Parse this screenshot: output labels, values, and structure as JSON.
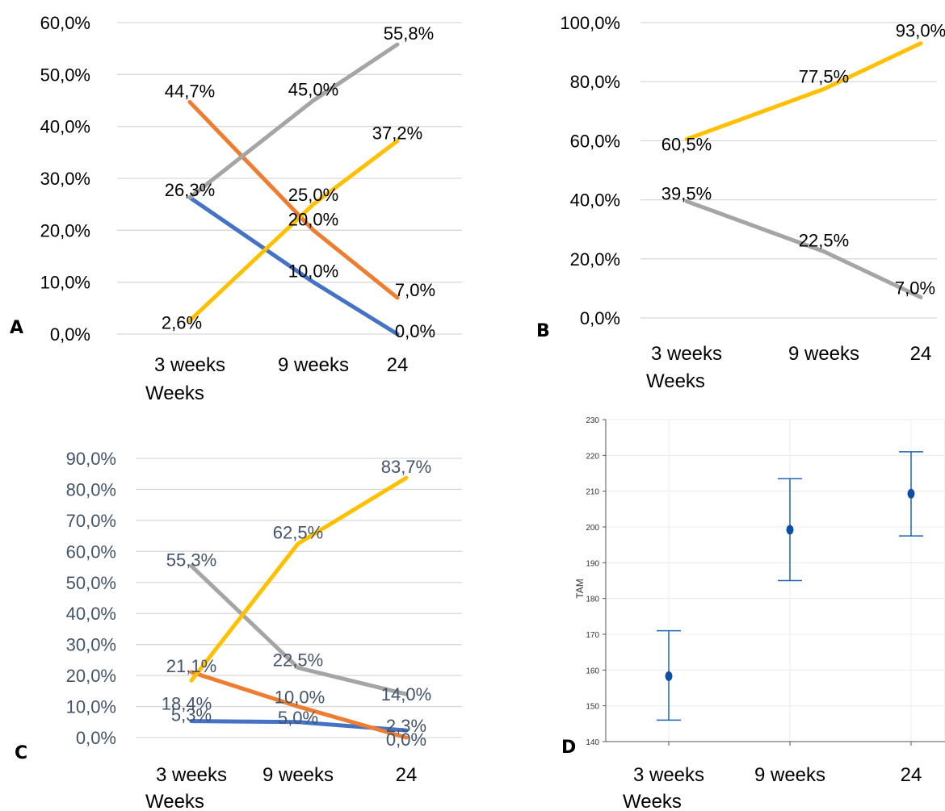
{
  "panels": {
    "a": {
      "letter": "A"
    },
    "b": {
      "letter": "B"
    },
    "c": {
      "letter": "C"
    },
    "d": {
      "letter": "D"
    }
  },
  "chart_data": [
    {
      "id": "A",
      "type": "line",
      "categories": [
        "3 weeks",
        "9 weeks",
        "24"
      ],
      "xlabel": "Weeks",
      "ylabel": "",
      "ylim": [
        0,
        60
      ],
      "yticks": [
        "0,0%",
        "10,0%",
        "20,0%",
        "30,0%",
        "40,0%",
        "50,0%",
        "60,0%"
      ],
      "grid": true,
      "series": [
        {
          "values": [
            26.3,
            10.0,
            0.0
          ],
          "labels": [
            "26,3%",
            "10,0%",
            "0,0%"
          ],
          "color": "#4472c4"
        },
        {
          "values": [
            44.7,
            20.0,
            7.0
          ],
          "labels": [
            "44,7%",
            "20,0%",
            "7,0%"
          ],
          "color": "#ed7d31"
        },
        {
          "values": [
            26.3,
            45.0,
            55.8
          ],
          "labels": [
            "",
            "45,0%",
            "55,8%"
          ],
          "color": "#a5a5a5"
        },
        {
          "values": [
            2.6,
            25.0,
            37.2
          ],
          "labels": [
            "2,6%",
            "25,0%",
            "37,2%"
          ],
          "color": "#ffc000"
        }
      ]
    },
    {
      "id": "B",
      "type": "line",
      "categories": [
        "3 weeks",
        "9 weeks",
        "24"
      ],
      "xlabel": "Weeks",
      "ylabel": "",
      "ylim": [
        0,
        100
      ],
      "yticks": [
        "0,0%",
        "20,0%",
        "40,0%",
        "60,0%",
        "80,0%",
        "100,0%"
      ],
      "grid": true,
      "series": [
        {
          "values": [
            39.5,
            22.5,
            7.0
          ],
          "labels": [
            "39,5%",
            "22,5%",
            "7,0%"
          ],
          "color": "#a5a5a5"
        },
        {
          "values": [
            60.5,
            77.5,
            93.0
          ],
          "labels": [
            "60,5%",
            "77,5%",
            "93,0%"
          ],
          "color": "#ffc000"
        }
      ]
    },
    {
      "id": "C",
      "type": "line",
      "categories": [
        "3 weeks",
        "9 weeks",
        "24"
      ],
      "xlabel": "Weeks",
      "ylabel": "",
      "ylim": [
        0,
        90
      ],
      "yticks": [
        "0,0%",
        "10,0%",
        "20,0%",
        "30,0%",
        "40,0%",
        "50,0%",
        "60,0%",
        "70,0%",
        "80,0%",
        "90,0%"
      ],
      "grid": true,
      "series": [
        {
          "values": [
            5.3,
            5.0,
            2.3
          ],
          "labels": [
            "5,3%",
            "5,0%",
            "2,3%"
          ],
          "color": "#4472c4"
        },
        {
          "values": [
            21.1,
            10.0,
            0.0
          ],
          "labels": [
            "21,1%",
            "10,0%",
            "0,0%"
          ],
          "color": "#ed7d31"
        },
        {
          "values": [
            55.3,
            22.5,
            14.0
          ],
          "labels": [
            "55,3%",
            "22,5%",
            "14,0%"
          ],
          "color": "#a5a5a5"
        },
        {
          "values": [
            18.4,
            62.5,
            83.7
          ],
          "labels": [
            "18,4%",
            "62,5%",
            "83,7%"
          ],
          "color": "#ffc000"
        }
      ]
    },
    {
      "id": "D",
      "type": "scatter",
      "categories": [
        "3 weeks",
        "9 weeks",
        "24"
      ],
      "xlabel": "Weeks",
      "ylabel": "TAM",
      "ylim": [
        140,
        230
      ],
      "yticks": [
        "140",
        "150",
        "160",
        "170",
        "180",
        "190",
        "200",
        "210",
        "220",
        "230"
      ],
      "grid": true,
      "points": [
        {
          "mean": 158.3,
          "low": 146,
          "high": 171
        },
        {
          "mean": 199.2,
          "low": 185,
          "high": 213.5
        },
        {
          "mean": 209.3,
          "low": 197.5,
          "high": 221
        }
      ],
      "color": "#1f64b4"
    }
  ]
}
